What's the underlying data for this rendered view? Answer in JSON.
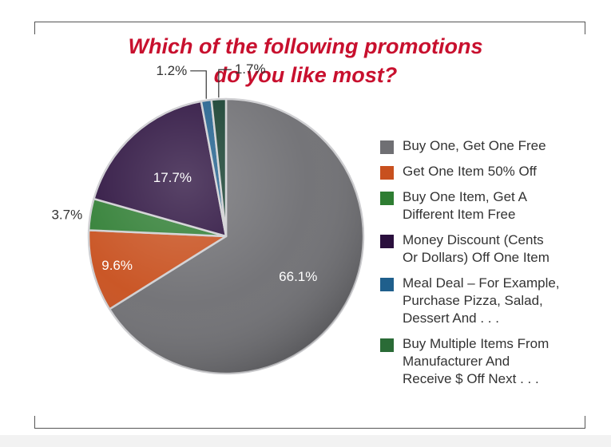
{
  "title_line1": "Which of the following promotions",
  "title_line2": "do you like most?",
  "colors": {
    "title": "#c8102e",
    "frame": "#555555"
  },
  "chart_data": {
    "type": "pie",
    "title": "Which of the following promotions do you like most?",
    "unit": "%",
    "slices": [
      {
        "label": "Buy One, Get One Free",
        "value": 66.1,
        "value_label": "66.1%",
        "color": "#6f6f73",
        "label_color": "#ffffff"
      },
      {
        "label": "Get One Item 50% Off",
        "value": 9.6,
        "value_label": "9.6%",
        "color": "#c8501e",
        "label_color": "#ffffff"
      },
      {
        "label": "Buy One Item, Get A Different Item Free",
        "value": 3.7,
        "value_label": "3.7%",
        "color": "#2e7d32",
        "label_color": "#333333"
      },
      {
        "label": "Money Discount (Cents Or Dollars) Off One Item",
        "value": 17.7,
        "value_label": "17.7%",
        "color": "#2a0f3d",
        "label_color": "#ffffff"
      },
      {
        "label": "Meal Deal – For Example, Purchase Pizza, Salad, Dessert And . . .",
        "value": 1.2,
        "value_label": "1.2%",
        "color": "#1f5f8c",
        "label_color": "#333333"
      },
      {
        "label": "Buy Multiple Items From Manufacturer And Receive $ Off Next . . .",
        "value": 1.7,
        "value_label": "1.7%",
        "color": "#123c2c",
        "label_color": "#333333"
      }
    ]
  },
  "legend": [
    {
      "lines": [
        "Buy One, Get One Free"
      ],
      "color": "#6f6f73"
    },
    {
      "lines": [
        "Get One Item 50% Off"
      ],
      "color": "#c8501e"
    },
    {
      "lines": [
        "Buy One Item, Get A",
        "Different Item Free"
      ],
      "color": "#2e7d32"
    },
    {
      "lines": [
        "Money Discount (Cents",
        "Or Dollars) Off One Item"
      ],
      "color": "#2a0f3d"
    },
    {
      "lines": [
        "Meal Deal – For Example,",
        "Purchase Pizza, Salad,",
        "Dessert And . . ."
      ],
      "color": "#1f5f8c"
    },
    {
      "lines": [
        "Buy Multiple Items From",
        "Manufacturer And",
        "Receive $ Off Next . . ."
      ],
      "color": "#2a6b36"
    }
  ]
}
